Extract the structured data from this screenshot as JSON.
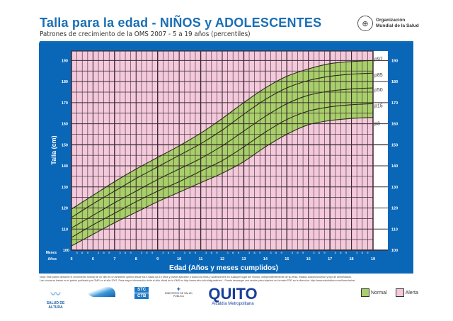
{
  "header": {
    "title": "Talla para la edad - NIÑOS y  ADOLESCENTES",
    "subtitle": "Patrones de crecimiento de la OMS 2007 - 5 a 19 años (percentiles)",
    "org_line1": "Organización",
    "org_line2": "Mundial de la Salud",
    "org_icon": "who-emblem-icon"
  },
  "colors": {
    "brand_blue": "#0a67b8",
    "title_blue": "#1a6fb5",
    "normal_green": "#a8cf6a",
    "alert_pink": "#f4c9dc",
    "grid_line": "#3a2a30"
  },
  "axes": {
    "y_title": "Talla (cm)",
    "x_title": "Edad (Años y meses cumplidos)",
    "row_label_months": "Meses",
    "row_label_years": "Años",
    "month_ticks": [
      "3",
      "6",
      "9"
    ]
  },
  "legend": {
    "normal": "Normal",
    "alert": "Alerta"
  },
  "footer": {
    "note_line1": "Nota: Este patrón describe el crecimiento normal de un niño en un ambiente óptimo desde los 5 hasta los 19 años y puede aplicarse a todos los niños y adolescentes en cualquier lugar del mundo, independientemente de su etnia, estatus socioeconómico y tipo de alimentación.",
    "note_line2": "Las curvas se basan en el patrón publicado por OMS en el año 2007. Para mayor información visite el sitio oficial de la OMS en http://www.who.int/childgrowth/en/ - Puede descargar una versión para imprimir en formato PDF en la dirección: http://www.saludaltura.com/formularios/",
    "logos": [
      {
        "name": "salud-de-altura",
        "label": "SALUD DE ALTURA"
      },
      {
        "name": "logo-2",
        "label": ""
      },
      {
        "name": "stc-ctb",
        "label1": "STC",
        "label2": "CTB"
      },
      {
        "name": "ministerio-salud",
        "label": "MINISTERIO DE SALUD PÚBLICA"
      },
      {
        "name": "quito",
        "label": "QUITO",
        "sub": "Alcaldía Metropolitana"
      }
    ]
  },
  "chart_data": {
    "type": "line",
    "title": "Talla para la edad - NIÑOS y ADOLESCENTES",
    "subtitle": "Patrones de crecimiento de la OMS 2007 - 5 a 19 años (percentiles)",
    "xlabel": "Edad (Años y meses cumplidos)",
    "ylabel": "Talla (cm)",
    "xlim": [
      5,
      19
    ],
    "ylim": [
      100,
      190
    ],
    "x_ticks": [
      5,
      6,
      7,
      8,
      9,
      10,
      11,
      12,
      13,
      14,
      15,
      16,
      17,
      18,
      19
    ],
    "y_ticks": [
      100,
      110,
      120,
      130,
      140,
      150,
      160,
      170,
      180,
      190
    ],
    "grid": true,
    "legend_position": "bottom-right",
    "shaded_band": {
      "from": "p3",
      "to": "p97",
      "label": "Normal",
      "outside_label": "Alerta"
    },
    "x": [
      5,
      6,
      7,
      8,
      9,
      10,
      11,
      12,
      13,
      14,
      15,
      16,
      17,
      18,
      19
    ],
    "series": [
      {
        "name": "p97",
        "values": [
          119.5,
          126,
          132.5,
          138.5,
          144,
          149.5,
          155.5,
          162.5,
          170,
          177,
          182.5,
          186,
          188.5,
          189.5,
          190
        ]
      },
      {
        "name": "p85",
        "values": [
          115.5,
          122,
          128,
          134,
          139.5,
          145,
          150.5,
          157,
          164.5,
          171.5,
          177,
          180.5,
          182.5,
          183.5,
          184
        ]
      },
      {
        "name": "p50",
        "values": [
          110.5,
          116.5,
          122.5,
          128,
          133.5,
          138.5,
          143.5,
          149.5,
          156.5,
          163.5,
          169.5,
          173.5,
          175.5,
          176.5,
          177
        ]
      },
      {
        "name": "p15",
        "values": [
          106,
          112,
          117.5,
          123,
          128,
          132.5,
          137.5,
          142.5,
          149,
          156,
          162,
          166,
          168,
          169,
          169.5
        ]
      },
      {
        "name": "p3",
        "values": [
          102,
          107.5,
          113,
          118,
          123,
          127.5,
          132,
          136.5,
          142,
          149,
          155,
          159.5,
          161.5,
          162.5,
          163
        ]
      }
    ]
  }
}
